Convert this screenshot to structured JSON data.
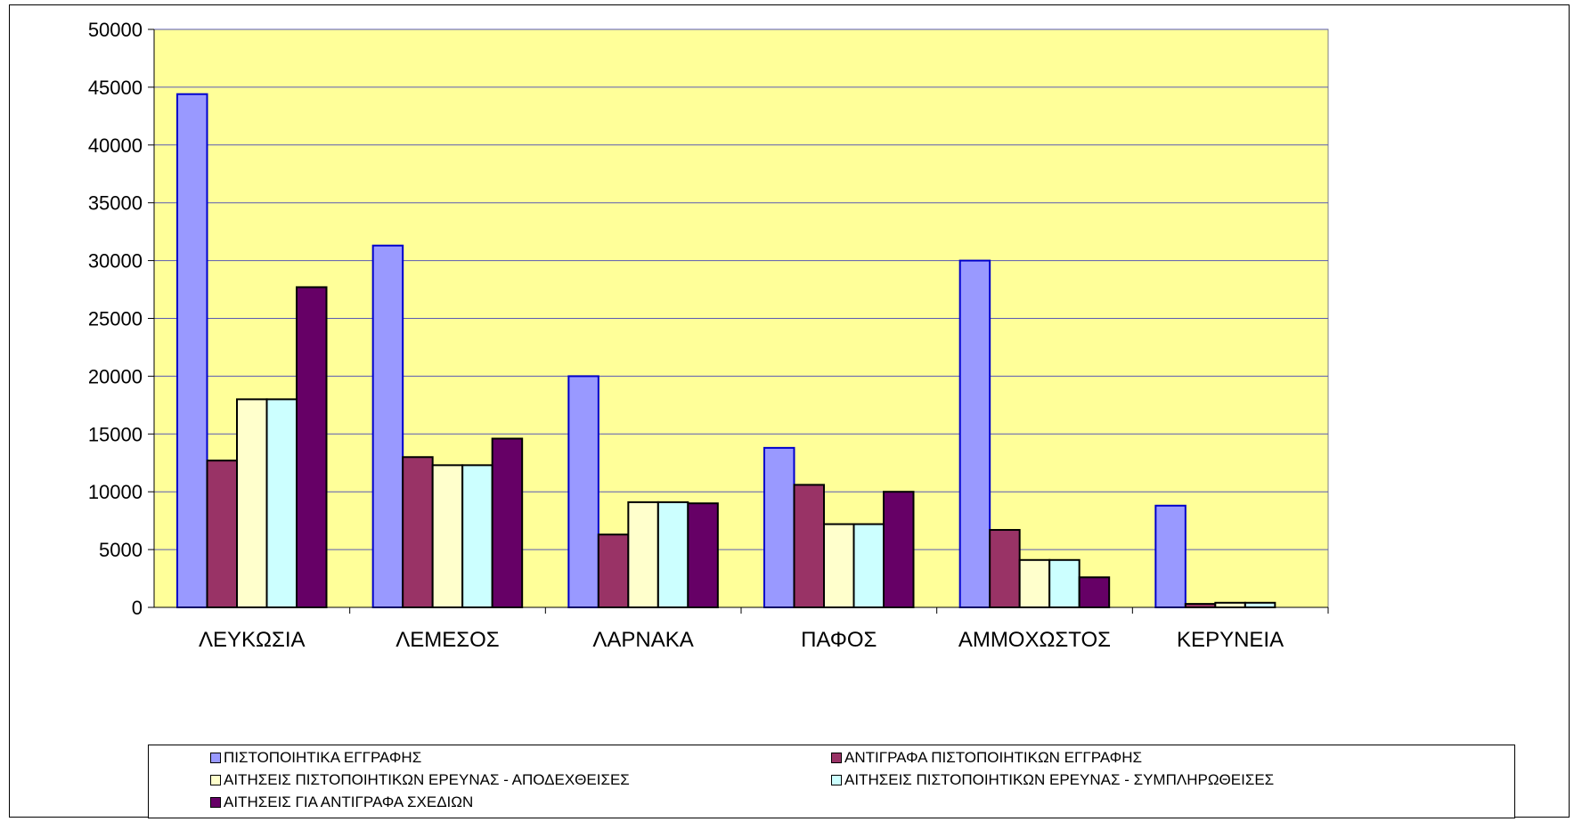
{
  "chart_data": {
    "type": "bar",
    "title": "",
    "xlabel": "",
    "ylabel": "",
    "ylim": [
      0,
      50000
    ],
    "yticks": [
      0,
      5000,
      10000,
      15000,
      20000,
      25000,
      30000,
      35000,
      40000,
      45000,
      50000
    ],
    "grid": true,
    "legend_position": "bottom",
    "plot_background": "#ffff99",
    "categories": [
      "ΛΕΥΚΩΣΙΑ",
      "ΛΕΜΕΣΟΣ",
      "ΛΑΡΝΑΚΑ",
      "ΠΑΦΟΣ",
      "ΑΜΜΟΧΩΣΤΟΣ",
      "ΚΕΡΥΝΕΙΑ"
    ],
    "series": [
      {
        "name": "ΠΙΣΤΟΠΟΙΗΤΙΚΑ ΕΓΓΡΑΦΗΣ",
        "color": "#9999ff",
        "stroke": "#0000cc",
        "values": [
          44400,
          31300,
          20000,
          13800,
          30000,
          8800
        ]
      },
      {
        "name": "ΑΝΤΙΓΡΑΦΑ ΠΙΣΤΟΠΟΙΗΤΙΚΩΝ ΕΓΓΡΑΦΗΣ",
        "color": "#993366",
        "stroke": "#000000",
        "values": [
          12700,
          13000,
          6300,
          10600,
          6700,
          300
        ]
      },
      {
        "name": "ΑΙΤΗΣΕΙΣ ΠΙΣΤΟΠΟΙΗΤΙΚΩΝ ΕΡΕΥΝΑΣ - ΑΠΟΔΕΧΘΕΙΣΕΣ",
        "color": "#ffffcc",
        "stroke": "#000000",
        "values": [
          18000,
          12300,
          9100,
          7200,
          4100,
          400
        ]
      },
      {
        "name": "ΑΙΤΗΣΕΙΣ ΠΙΣΤΟΠΟΙΗΤΙΚΩΝ ΕΡΕΥΝΑΣ - ΣΥΜΠΛΗΡΩΘΕΙΣΕΣ",
        "color": "#ccffff",
        "stroke": "#000000",
        "values": [
          18000,
          12300,
          9100,
          7200,
          4100,
          400
        ]
      },
      {
        "name": "ΑΙΤΗΣΕΙΣ ΓΙΑ ΑΝΤΙΓΡΑΦΑ ΣΧΕΔΙΩΝ",
        "color": "#660066",
        "stroke": "#000000",
        "values": [
          27700,
          14600,
          9000,
          10000,
          2600,
          0
        ]
      }
    ]
  }
}
